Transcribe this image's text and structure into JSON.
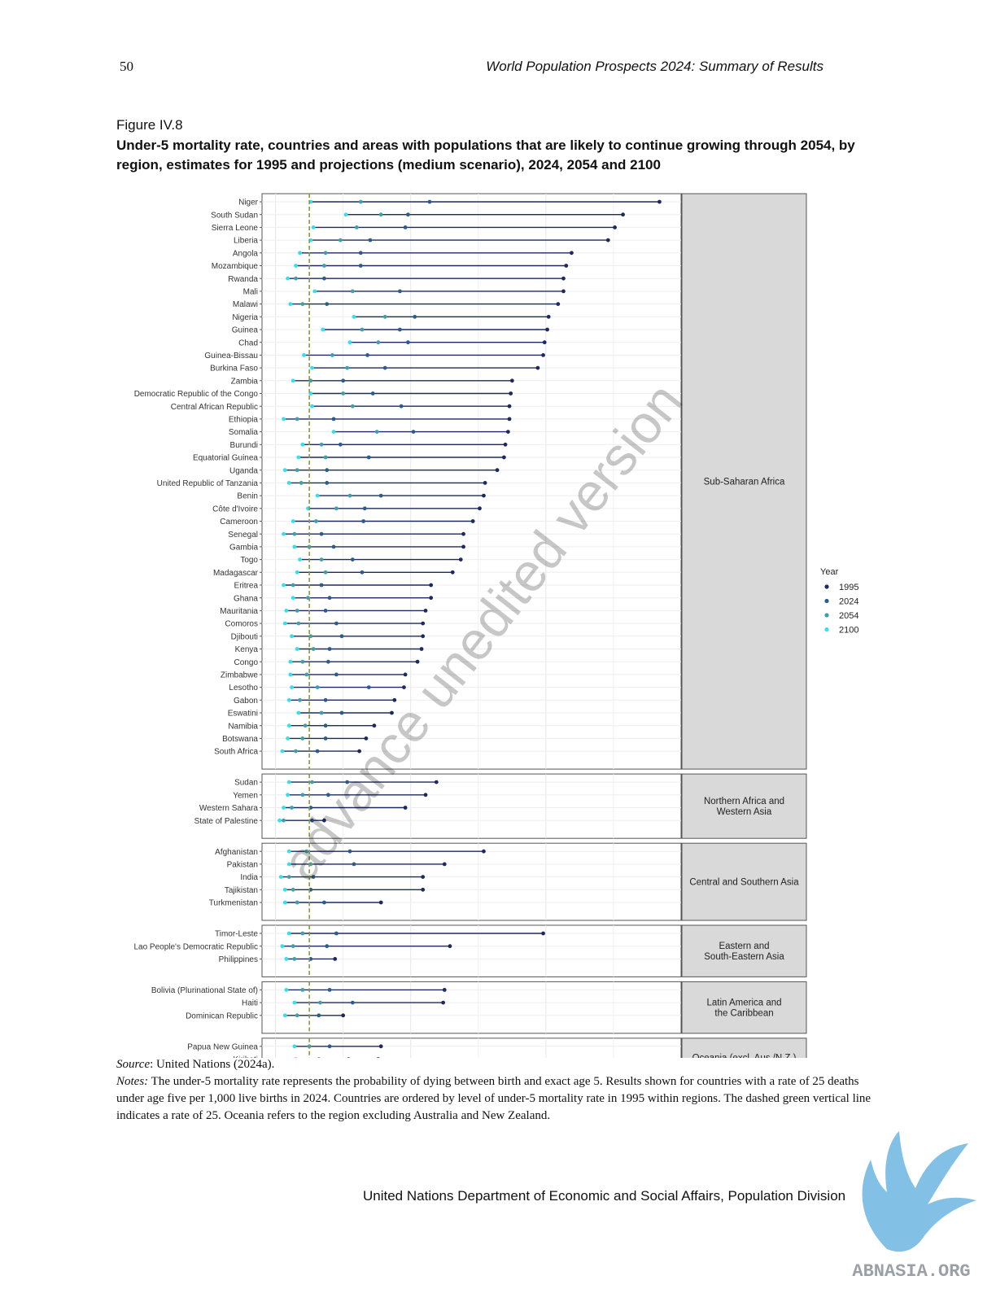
{
  "header": {
    "page_number": "50",
    "running_title": "World Population Prospects 2024: Summary of Results"
  },
  "figure": {
    "label": "Figure IV.8",
    "title": "Under-5 mortality rate, countries and areas with populations that are likely to continue growing through 2054, by region, estimates for 1995 and projections (medium scenario), 2024, 2054 and 2100"
  },
  "chart_data": {
    "type": "dot-range",
    "x_ticks": [
      0,
      100,
      200
    ],
    "xlim": [
      -10,
      300
    ],
    "reference_line": 25,
    "legend": {
      "title": "Year",
      "placement": "right",
      "entries": [
        "1995",
        "2024",
        "2054",
        "2100"
      ]
    },
    "colors": {
      "1995": "#1f2a5c",
      "2024": "#2a5d8c",
      "2054": "#3fa0a8",
      "2100": "#33e0ee",
      "reference": "#8a9a3a",
      "panel_strip": "#d9d9d9"
    },
    "watermark": "advance unedited version",
    "panels": [
      {
        "region": "Sub-Saharan Africa",
        "countries": [
          {
            "name": "Niger",
            "v1995": 284,
            "v2024": 114,
            "v2054": 63,
            "v2100": 26
          },
          {
            "name": "South Sudan",
            "v1995": 257,
            "v2024": 98,
            "v2054": 78,
            "v2100": 52
          },
          {
            "name": "Sierra Leone",
            "v1995": 251,
            "v2024": 96,
            "v2054": 60,
            "v2100": 28
          },
          {
            "name": "Liberia",
            "v1995": 246,
            "v2024": 70,
            "v2054": 48,
            "v2100": 26
          },
          {
            "name": "Angola",
            "v1995": 219,
            "v2024": 63,
            "v2054": 37,
            "v2100": 18
          },
          {
            "name": "Mozambique",
            "v1995": 215,
            "v2024": 63,
            "v2054": 36,
            "v2100": 15
          },
          {
            "name": "Rwanda",
            "v1995": 213,
            "v2024": 36,
            "v2054": 15,
            "v2100": 9
          },
          {
            "name": "Mali",
            "v1995": 213,
            "v2024": 92,
            "v2054": 57,
            "v2100": 29
          },
          {
            "name": "Malawi",
            "v1995": 209,
            "v2024": 38,
            "v2054": 20,
            "v2100": 11
          },
          {
            "name": "Nigeria",
            "v1995": 202,
            "v2024": 103,
            "v2054": 81,
            "v2100": 58
          },
          {
            "name": "Guinea",
            "v1995": 201,
            "v2024": 92,
            "v2054": 64,
            "v2100": 35
          },
          {
            "name": "Chad",
            "v1995": 199,
            "v2024": 98,
            "v2054": 76,
            "v2100": 55
          },
          {
            "name": "Guinea-Bissau",
            "v1995": 198,
            "v2024": 68,
            "v2054": 42,
            "v2100": 21
          },
          {
            "name": "Burkina Faso",
            "v1995": 194,
            "v2024": 81,
            "v2054": 53,
            "v2100": 27
          },
          {
            "name": "Zambia",
            "v1995": 175,
            "v2024": 50,
            "v2054": 26,
            "v2100": 13
          },
          {
            "name": "Democratic Republic of the Congo",
            "v1995": 174,
            "v2024": 72,
            "v2054": 50,
            "v2100": 26
          },
          {
            "name": "Central African Republic",
            "v1995": 173,
            "v2024": 93,
            "v2054": 57,
            "v2100": 27
          },
          {
            "name": "Ethiopia",
            "v1995": 173,
            "v2024": 43,
            "v2054": 16,
            "v2100": 6
          },
          {
            "name": "Somalia",
            "v1995": 172,
            "v2024": 102,
            "v2054": 75,
            "v2100": 43
          },
          {
            "name": "Burundi",
            "v1995": 170,
            "v2024": 48,
            "v2054": 34,
            "v2100": 20
          },
          {
            "name": "Equatorial Guinea",
            "v1995": 169,
            "v2024": 69,
            "v2054": 37,
            "v2100": 17
          },
          {
            "name": "Uganda",
            "v1995": 164,
            "v2024": 38,
            "v2054": 16,
            "v2100": 7
          },
          {
            "name": "United Republic of Tanzania",
            "v1995": 155,
            "v2024": 38,
            "v2054": 19,
            "v2100": 10
          },
          {
            "name": "Benin",
            "v1995": 154,
            "v2024": 78,
            "v2054": 55,
            "v2100": 31
          },
          {
            "name": "Côte d'Ivoire",
            "v1995": 151,
            "v2024": 66,
            "v2054": 45,
            "v2100": 24
          },
          {
            "name": "Cameroon",
            "v1995": 146,
            "v2024": 65,
            "v2054": 30,
            "v2100": 13
          },
          {
            "name": "Senegal",
            "v1995": 139,
            "v2024": 34,
            "v2054": 14,
            "v2100": 6
          },
          {
            "name": "Gambia",
            "v1995": 139,
            "v2024": 43,
            "v2054": 25,
            "v2100": 14
          },
          {
            "name": "Togo",
            "v1995": 137,
            "v2024": 57,
            "v2054": 34,
            "v2100": 18
          },
          {
            "name": "Madagascar",
            "v1995": 131,
            "v2024": 64,
            "v2054": 37,
            "v2100": 16
          },
          {
            "name": "Eritrea",
            "v1995": 115,
            "v2024": 34,
            "v2054": 13,
            "v2100": 6
          },
          {
            "name": "Ghana",
            "v1995": 115,
            "v2024": 40,
            "v2054": 24,
            "v2100": 13
          },
          {
            "name": "Mauritania",
            "v1995": 111,
            "v2024": 37,
            "v2054": 16,
            "v2100": 8
          },
          {
            "name": "Comoros",
            "v1995": 109,
            "v2024": 45,
            "v2054": 17,
            "v2100": 7
          },
          {
            "name": "Djibouti",
            "v1995": 109,
            "v2024": 49,
            "v2054": 26,
            "v2100": 12
          },
          {
            "name": "Kenya",
            "v1995": 108,
            "v2024": 40,
            "v2054": 28,
            "v2100": 16
          },
          {
            "name": "Congo",
            "v1995": 105,
            "v2024": 39,
            "v2054": 20,
            "v2100": 11
          },
          {
            "name": "Zimbabwe",
            "v1995": 96,
            "v2024": 45,
            "v2054": 23,
            "v2100": 11
          },
          {
            "name": "Lesotho",
            "v1995": 95,
            "v2024": 69,
            "v2054": 31,
            "v2100": 12
          },
          {
            "name": "Gabon",
            "v1995": 88,
            "v2024": 37,
            "v2054": 18,
            "v2100": 10
          },
          {
            "name": "Eswatini",
            "v1995": 86,
            "v2024": 49,
            "v2054": 34,
            "v2100": 17
          },
          {
            "name": "Namibia",
            "v1995": 73,
            "v2024": 37,
            "v2054": 22,
            "v2100": 10
          },
          {
            "name": "Botswana",
            "v1995": 67,
            "v2024": 37,
            "v2054": 20,
            "v2100": 9
          },
          {
            "name": "South Africa",
            "v1995": 62,
            "v2024": 31,
            "v2054": 15,
            "v2100": 5
          }
        ]
      },
      {
        "region": "Northern Africa and Western Asia",
        "countries": [
          {
            "name": "Sudan",
            "v1995": 119,
            "v2024": 53,
            "v2054": 27,
            "v2100": 10
          },
          {
            "name": "Yemen",
            "v1995": 111,
            "v2024": 39,
            "v2054": 20,
            "v2100": 9
          },
          {
            "name": "Western Sahara",
            "v1995": 96,
            "v2024": 26,
            "v2054": 12,
            "v2100": 6
          },
          {
            "name": "State of Palestine",
            "v1995": 36,
            "v2024": 27,
            "v2054": 6,
            "v2100": 3
          }
        ]
      },
      {
        "region": "Central and Southern Asia",
        "countries": [
          {
            "name": "Afghanistan",
            "v1995": 154,
            "v2024": 55,
            "v2054": 23,
            "v2100": 10
          },
          {
            "name": "Pakistan",
            "v1995": 125,
            "v2024": 58,
            "v2054": 26,
            "v2100": 10
          },
          {
            "name": "India",
            "v1995": 109,
            "v2024": 28,
            "v2054": 10,
            "v2100": 4
          },
          {
            "name": "Tajikistan",
            "v1995": 109,
            "v2024": 26,
            "v2054": 13,
            "v2100": 7
          },
          {
            "name": "Turkmenistan",
            "v1995": 78,
            "v2024": 36,
            "v2054": 16,
            "v2100": 7
          }
        ]
      },
      {
        "region": "Eastern and South-Eastern Asia",
        "countries": [
          {
            "name": "Timor-Leste",
            "v1995": 198,
            "v2024": 45,
            "v2054": 20,
            "v2100": 10
          },
          {
            "name": "Lao People's Democratic Republic",
            "v1995": 129,
            "v2024": 38,
            "v2054": 13,
            "v2100": 5
          },
          {
            "name": "Philippines",
            "v1995": 44,
            "v2024": 26,
            "v2054": 14,
            "v2100": 8
          }
        ]
      },
      {
        "region": "Latin America and the Caribbean",
        "countries": [
          {
            "name": "Bolivia (Plurinational State of)",
            "v1995": 125,
            "v2024": 40,
            "v2054": 20,
            "v2100": 8
          },
          {
            "name": "Haiti",
            "v1995": 124,
            "v2024": 57,
            "v2054": 33,
            "v2100": 14
          },
          {
            "name": "Dominican Republic",
            "v1995": 50,
            "v2024": 32,
            "v2054": 16,
            "v2100": 7
          }
        ]
      },
      {
        "region": "Oceania (excl. Aus./N.Z.)",
        "countries": [
          {
            "name": "Papua New Guinea",
            "v1995": 78,
            "v2024": 40,
            "v2054": 25,
            "v2100": 14
          },
          {
            "name": "Kiribati",
            "v1995": 76,
            "v2024": 54,
            "v2054": 32,
            "v2100": 15
          }
        ]
      }
    ]
  },
  "notes": {
    "source_label": "Source",
    "source_text": ": United Nations (2024a).",
    "notes_label": "Notes:",
    "notes_text": " The under-5 mortality rate represents the probability of dying between birth and exact age 5. Results shown for countries with a rate of 25 deaths under age five per 1,000 live births in 2024. Countries are ordered by level of under-5 mortality rate in 1995 within regions. The dashed green vertical line indicates a rate of 25. Oceania refers to the region excluding Australia and New Zealand."
  },
  "footer": {
    "text": "United Nations Department of Economic and Social Affairs, Population Division"
  },
  "logo": {
    "text": "ABNASIA.ORG",
    "color": "#6cb6e0"
  }
}
